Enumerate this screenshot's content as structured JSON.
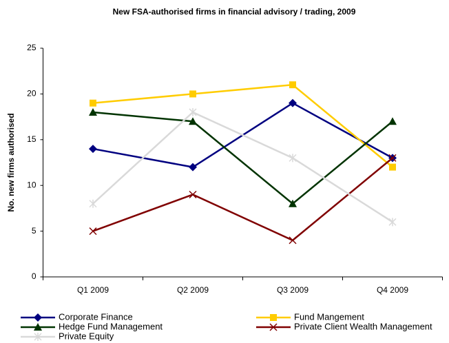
{
  "chart_data": {
    "type": "line",
    "title": "New FSA-authorised firms in financial advisory / trading, 2009",
    "y_label": "No. new firms authorised",
    "categories": [
      "Q1 2009",
      "Q2 2009",
      "Q3 2009",
      "Q4 2009"
    ],
    "series": [
      {
        "name": "Corporate Finance",
        "color": "#000080",
        "marker": "diamond",
        "values": [
          14,
          12,
          19,
          13
        ]
      },
      {
        "name": "Fund Mangement",
        "color": "#FFCC00",
        "marker": "square",
        "values": [
          19,
          20,
          21,
          12
        ]
      },
      {
        "name": "Hedge Fund Management",
        "color": "#003300",
        "marker": "triangle",
        "values": [
          18,
          17,
          8,
          17
        ]
      },
      {
        "name": "Private Client Wealth Management",
        "color": "#800000",
        "marker": "x",
        "values": [
          5,
          9,
          4,
          13
        ]
      },
      {
        "name": "Private Equity",
        "color": "#D9D9D9",
        "marker": "star",
        "values": [
          8,
          18,
          13,
          6
        ]
      }
    ],
    "ylim": [
      0,
      25
    ],
    "yticks": [
      0,
      5,
      10,
      15,
      20,
      25
    ],
    "grid": false,
    "legend": "bottom"
  }
}
